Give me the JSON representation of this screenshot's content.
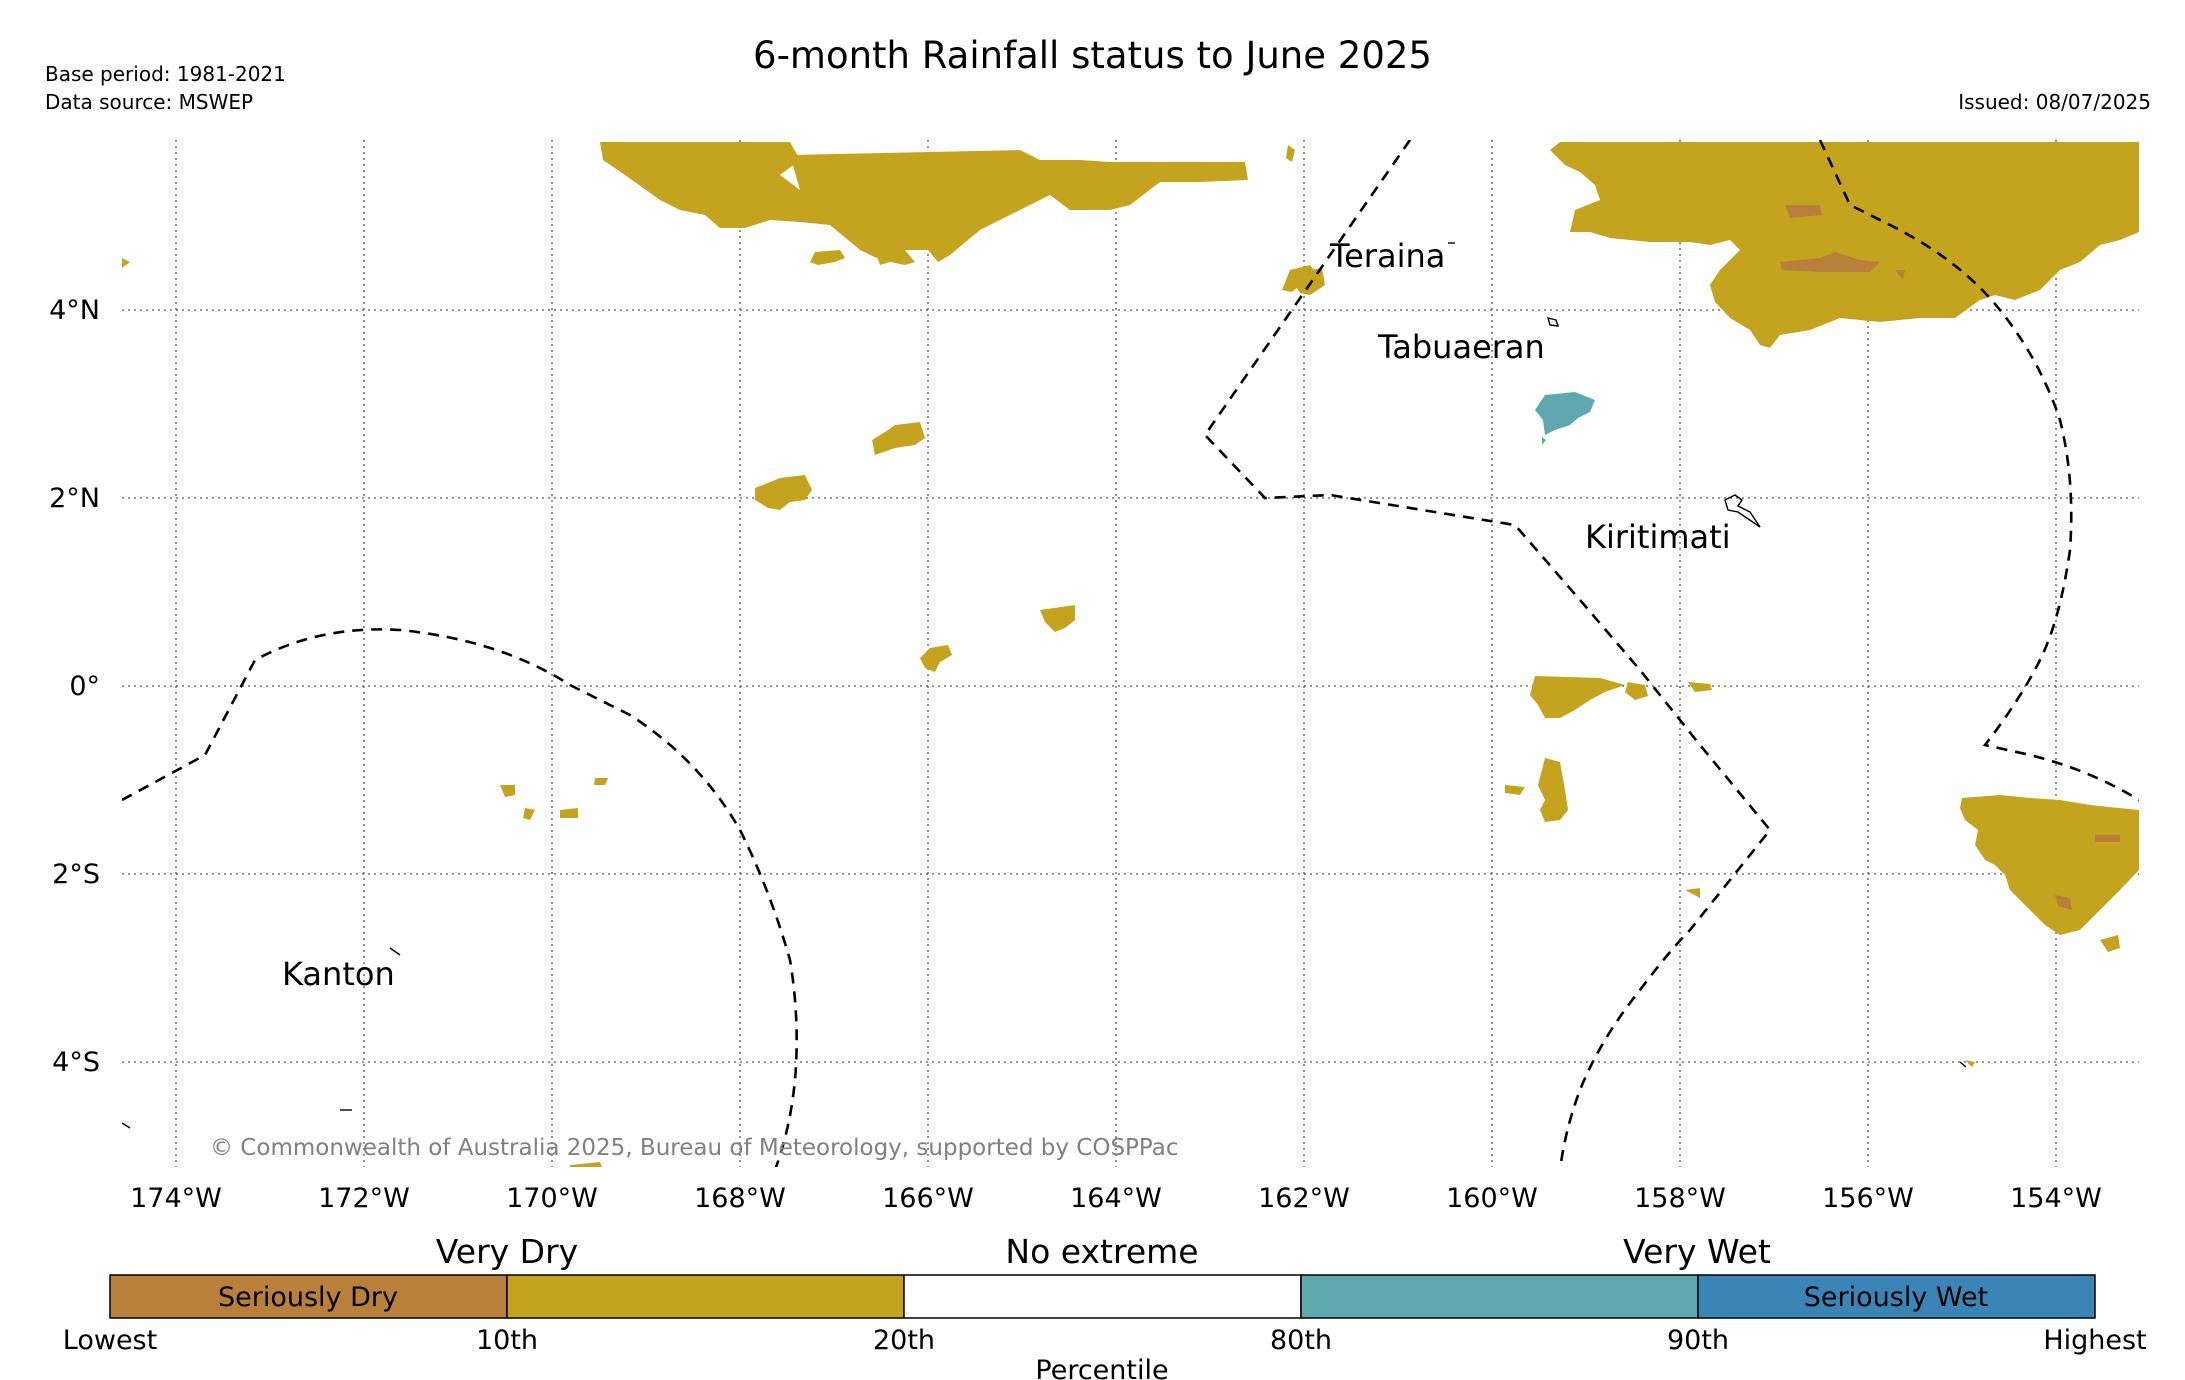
{
  "title": "6-month Rainfall status to June 2025",
  "base_period": "Base period: 1981-2021",
  "data_source": "Data source: MSWEP",
  "issued": "Issued: 08/07/2025",
  "copyright": "© Commonwealth of Australia 2025, Bureau of Meteorology, supported by COSPPac",
  "map": {
    "x_ticks": [
      "174°W",
      "172°W",
      "170°W",
      "168°W",
      "166°W",
      "164°W",
      "162°W",
      "160°W",
      "158°W",
      "156°W",
      "154°W"
    ],
    "y_ticks": [
      "4°N",
      "2°N",
      "0°",
      "2°S",
      "4°S"
    ],
    "places": {
      "teraina": "Teraina",
      "tabuaeran": "Tabuaeran",
      "kiritimati": "Kiritimati",
      "kanton": "Kanton"
    }
  },
  "legend": {
    "group_very_dry": "Very Dry",
    "group_no_extreme": "No extreme",
    "group_very_wet": "Very Wet",
    "boxes": [
      {
        "label": "Seriously Dry",
        "color": "#b8803a"
      },
      {
        "label": "",
        "color": "#c4a41e"
      },
      {
        "label": "",
        "color": "#ffffff"
      },
      {
        "label": "",
        "color": "#5ea8ae"
      },
      {
        "label": "Seriously Wet",
        "color": "#3b84b6"
      }
    ],
    "ticks": [
      "Lowest",
      "10th",
      "20th",
      "80th",
      "90th",
      "Highest"
    ],
    "axis_label": "Percentile"
  },
  "colors": {
    "very_dry": "#c4a41e",
    "seriously_dry": "#b8803a",
    "very_wet": "#5ea8ae",
    "seriously_wet": "#3b84b6"
  }
}
